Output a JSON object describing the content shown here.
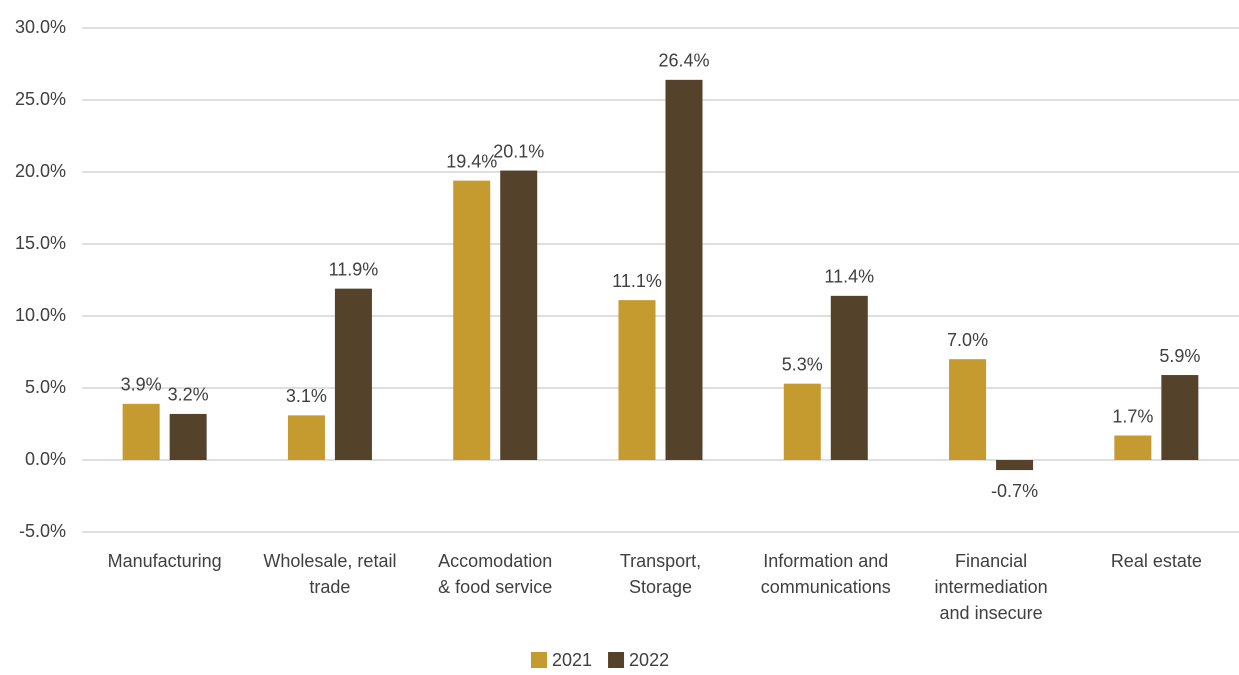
{
  "chart_data": {
    "type": "bar",
    "categories": [
      [
        "Manufacturing"
      ],
      [
        "Wholesale, retail",
        "trade"
      ],
      [
        "Accomodation",
        "& food service"
      ],
      [
        "Transport,",
        "Storage"
      ],
      [
        "Information and",
        "communications"
      ],
      [
        "Financial",
        "intermediation",
        "and insecure"
      ],
      [
        "Real estate"
      ]
    ],
    "series": [
      {
        "name": "2021",
        "color": "#c59a2e",
        "values": [
          3.9,
          3.1,
          19.4,
          11.1,
          5.3,
          7.0,
          1.7
        ],
        "value_labels": [
          "3.9%",
          "3.1%",
          "19.4%",
          "11.1%",
          "5.3%",
          "7.0%",
          "1.7%"
        ]
      },
      {
        "name": "2022",
        "color": "#54432a",
        "values": [
          3.2,
          11.9,
          20.1,
          26.4,
          11.4,
          -0.7,
          5.9
        ],
        "value_labels": [
          "3.2%",
          "11.9%",
          "20.1%",
          "26.4%",
          "11.4%",
          "-0.7%",
          "5.9%"
        ]
      }
    ],
    "ylim": [
      -5,
      30
    ],
    "yticks": [
      {
        "value": -5,
        "label": "-5.0%"
      },
      {
        "value": 0,
        "label": "0.0%"
      },
      {
        "value": 5,
        "label": "5.0%"
      },
      {
        "value": 10,
        "label": "10.0%"
      },
      {
        "value": 15,
        "label": "15.0%"
      },
      {
        "value": 20,
        "label": "20.0%"
      },
      {
        "value": 25,
        "label": "25.0%"
      },
      {
        "value": 30,
        "label": "30.0%"
      }
    ],
    "grid": true,
    "legend": "bottom"
  }
}
